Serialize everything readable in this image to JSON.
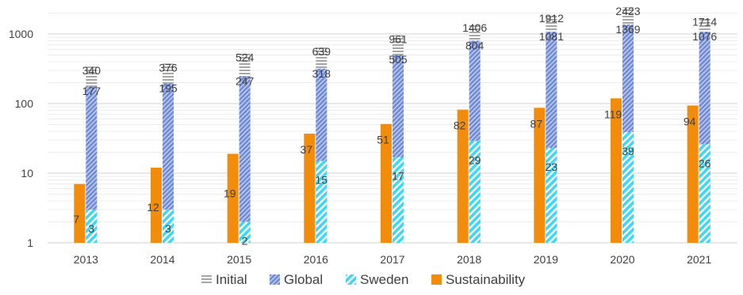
{
  "chart_data": {
    "type": "bar",
    "y_scale": "log",
    "ylim": [
      1,
      3000
    ],
    "y_ticks": [
      1,
      10,
      100,
      1000
    ],
    "y_tick_labels": [
      "1",
      "10",
      "100",
      "1000"
    ],
    "grid": true,
    "legend_position": "bottom",
    "categories": [
      "2013",
      "2014",
      "2015",
      "2016",
      "2017",
      "2018",
      "2019",
      "2020",
      "2021"
    ],
    "series": [
      {
        "name": "Sustainability",
        "color": "#F28C0A",
        "pattern": "solid",
        "values": [
          7,
          12,
          19,
          37,
          51,
          82,
          87,
          119,
          94
        ]
      },
      {
        "name": "Sweden",
        "color": "#3FD7F2",
        "pattern": "diagonal-stripes",
        "values": [
          3,
          3,
          2,
          15,
          17,
          29,
          23,
          39,
          26
        ]
      },
      {
        "name": "Global",
        "color": "#5E7FD1",
        "pattern": "dense-diagonal",
        "values": [
          177,
          195,
          247,
          318,
          505,
          804,
          1081,
          1369,
          1076
        ]
      },
      {
        "name": "Initial",
        "color": "#A6A6A6",
        "pattern": "horizontal-lines",
        "values": [
          340,
          376,
          524,
          639,
          961,
          1406,
          1912,
          2423,
          1714
        ]
      }
    ]
  }
}
